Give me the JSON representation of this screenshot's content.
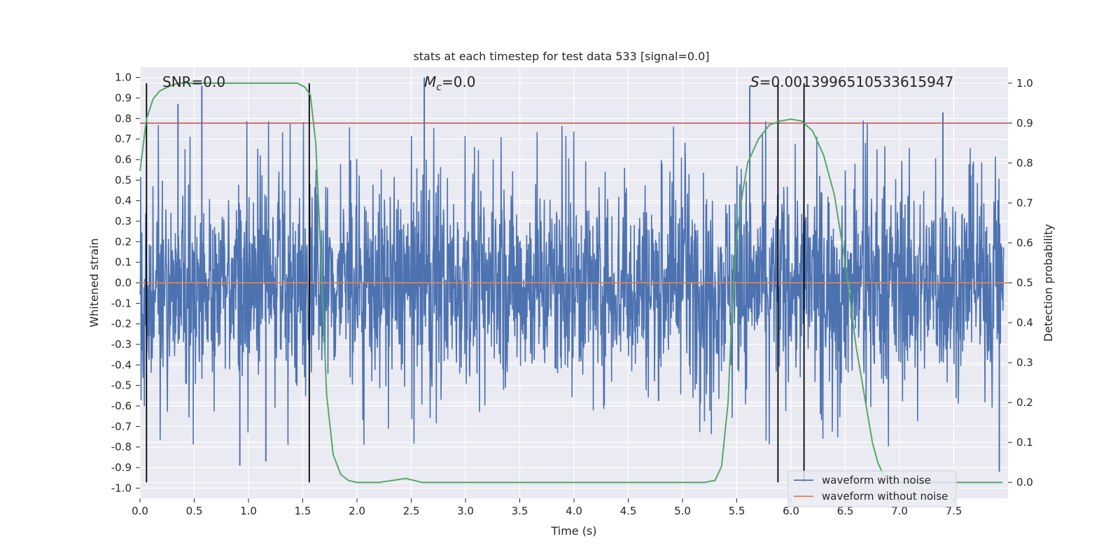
{
  "chart_data": {
    "type": "line",
    "title": "stats at each timestep for test data 533 [signal=0.0]",
    "xlabel": "Time (s)",
    "ylabel": "Whitened strain",
    "y2label": "Detection probability",
    "xlim": [
      0.0,
      8.0
    ],
    "ylim": [
      -1.05,
      1.05
    ],
    "y2lim": [
      -0.04,
      1.04
    ],
    "x_ticks": [
      "0.0",
      "0.5",
      "1.0",
      "1.5",
      "2.0",
      "2.5",
      "3.0",
      "3.5",
      "4.0",
      "4.5",
      "5.0",
      "5.5",
      "6.0",
      "6.5",
      "7.0",
      "7.5"
    ],
    "y_ticks": [
      "1.0",
      "0.9",
      "0.8",
      "0.7",
      "0.6",
      "0.5",
      "0.4",
      "0.3",
      "0.2",
      "0.1",
      "0.0",
      "-0.1",
      "-0.2",
      "-0.3",
      "-0.4",
      "-0.5",
      "-0.6",
      "-0.7",
      "-0.8",
      "-0.9",
      "-1.0"
    ],
    "y2_ticks": [
      "1.0",
      "0.9",
      "0.8",
      "0.7",
      "0.6",
      "0.5",
      "0.4",
      "0.3",
      "0.2",
      "0.1",
      "0.0"
    ],
    "annotations": {
      "snr": "SNR=0.0",
      "mc_symbol": "M",
      "mc_sub": "c",
      "mc_value": "=0.0",
      "s_symbol": "S",
      "s_value": "=0.0013996510533615947"
    },
    "threshold": {
      "axis": "y2",
      "value": 0.9,
      "color": "#c44e52"
    },
    "vertical_lines": [
      0.06,
      1.56,
      5.88,
      6.12
    ],
    "legend_placement": "lower-right",
    "grid": true,
    "series": [
      {
        "name": "waveform with noise",
        "axis": "y",
        "color": "#4c72b0",
        "note_type": "dense noise, approx envelope",
        "x": [
          0.0,
          0.35,
          0.57,
          0.92,
          1.16,
          2.62,
          5.62,
          7.4,
          7.92
        ],
        "y": [
          0.0,
          0.87,
          0.96,
          -0.89,
          -0.87,
          1.0,
          0.96,
          0.83,
          -0.92
        ]
      },
      {
        "name": "waveform without noise",
        "axis": "y",
        "color": "#dd8452",
        "x": [
          0.0,
          8.0
        ],
        "y": [
          0.0,
          0.0
        ]
      },
      {
        "name": "",
        "axis": "y2",
        "color": "#55a868",
        "x": [
          0.0,
          0.06,
          0.12,
          0.18,
          0.25,
          0.35,
          0.5,
          0.8,
          1.2,
          1.45,
          1.52,
          1.57,
          1.62,
          1.67,
          1.72,
          1.78,
          1.85,
          1.92,
          2.0,
          2.2,
          2.45,
          2.6,
          2.8,
          3.5,
          4.5,
          5.0,
          5.2,
          5.3,
          5.36,
          5.42,
          5.46,
          5.5,
          5.55,
          5.6,
          5.7,
          5.8,
          5.9,
          6.0,
          6.1,
          6.2,
          6.3,
          6.4,
          6.5,
          6.6,
          6.7,
          6.75,
          6.8,
          6.85,
          6.9,
          6.95,
          7.0,
          7.5,
          7.95
        ],
        "y": [
          0.78,
          0.91,
          0.96,
          0.98,
          0.99,
          1.0,
          1.0,
          1.0,
          1.0,
          1.0,
          0.99,
          0.97,
          0.85,
          0.55,
          0.22,
          0.07,
          0.02,
          0.005,
          0.0,
          0.0,
          0.01,
          0.0,
          0.0,
          0.0,
          0.0,
          0.0,
          0.0,
          0.005,
          0.04,
          0.2,
          0.45,
          0.62,
          0.72,
          0.8,
          0.86,
          0.895,
          0.905,
          0.91,
          0.905,
          0.88,
          0.82,
          0.72,
          0.55,
          0.34,
          0.18,
          0.1,
          0.05,
          0.02,
          0.01,
          0.0,
          0.0,
          0.0,
          0.0
        ]
      }
    ]
  }
}
